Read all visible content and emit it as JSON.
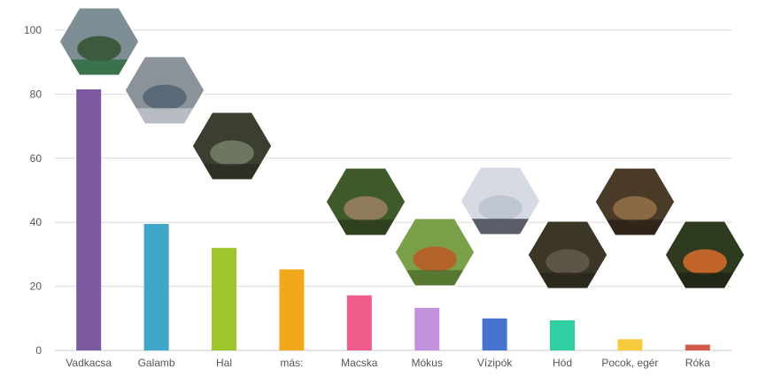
{
  "chart_data": {
    "type": "bar",
    "title": "",
    "xlabel": "",
    "ylabel": "",
    "ylim": [
      0,
      100
    ],
    "y_ticks": [
      "0",
      "20",
      "40",
      "60",
      "80",
      "100"
    ],
    "grid": true,
    "categories": [
      "Vadkacsa",
      "Galamb",
      "Hal",
      "más:",
      "Macska",
      "Mókus",
      "Vízipók",
      "Hód",
      "Pocok, egér",
      "Róka"
    ],
    "values": [
      81.5,
      39.5,
      32,
      25.3,
      17.2,
      13.3,
      10,
      9.4,
      3.5,
      1.8
    ],
    "colors": [
      "#7b5aa0",
      "#3fa7c9",
      "#9cc62b",
      "#f2a81d",
      "#ef5e8a",
      "#c392dc",
      "#4774d0",
      "#2ecfa1",
      "#f7cb3b",
      "#d2594c"
    ],
    "photo_icons": [
      "mallard-duck-photo-icon",
      "pigeon-photo-icon",
      "catfish-photo-icon",
      "wildcat-photo-icon",
      "red-squirrel-photo-icon",
      "water-strider-photo-icon",
      "beaver-photo-icon",
      "vole-photo-icon",
      "red-fox-photo-icon"
    ]
  }
}
